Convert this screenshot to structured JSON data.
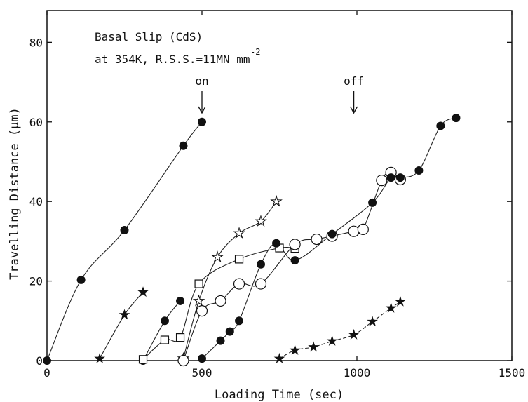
{
  "chart_data": {
    "type": "scatter",
    "title": "",
    "annotation_lines": [
      "Basal Slip (CdS)",
      "at 354K, R.S.S.=11MN mm",
      "-2"
    ],
    "markers": [
      {
        "label": "on",
        "x": 500
      },
      {
        "label": "off",
        "x": 990
      }
    ],
    "xlabel": "Loading Time (sec)",
    "ylabel": "Travelling Distance (μm)",
    "xlim": [
      0,
      1500
    ],
    "ylim": [
      0,
      88
    ],
    "x_ticks": [
      0,
      500,
      1000,
      1500
    ],
    "y_ticks": [
      0,
      20,
      40,
      60,
      80
    ],
    "x_tick_labels": [
      "0",
      "500",
      "1000",
      "1500"
    ],
    "y_tick_labels": [
      "0",
      "20",
      "40",
      "60",
      "80"
    ],
    "grid": false,
    "series": [
      {
        "marker": "filled-circle",
        "points": [
          [
            0,
            0
          ],
          [
            110,
            20.3
          ],
          [
            250,
            32.8
          ],
          [
            440,
            54
          ],
          [
            500,
            60
          ]
        ]
      },
      {
        "marker": "filled-star",
        "points": [
          [
            170,
            0.5
          ],
          [
            250,
            11.5
          ],
          [
            310,
            17.2
          ]
        ]
      },
      {
        "marker": "filled-circle",
        "points": [
          [
            310,
            0
          ],
          [
            380,
            10
          ],
          [
            430,
            15
          ]
        ]
      },
      {
        "marker": "open-star",
        "points": [
          [
            440,
            0.5
          ],
          [
            490,
            15
          ],
          [
            550,
            26
          ],
          [
            620,
            32
          ],
          [
            690,
            35
          ],
          [
            740,
            40
          ]
        ]
      },
      {
        "marker": "open-square",
        "points": [
          [
            310,
            0.3
          ],
          [
            380,
            5.2
          ],
          [
            430,
            5.8
          ],
          [
            490,
            19.3
          ],
          [
            620,
            25.5
          ],
          [
            750,
            28.3
          ],
          [
            800,
            28.2
          ]
        ]
      },
      {
        "marker": "open-circle",
        "points": [
          [
            440,
            0
          ],
          [
            500,
            12.5
          ],
          [
            560,
            15
          ],
          [
            620,
            19.3
          ],
          [
            690,
            19.3
          ],
          [
            800,
            29.2
          ],
          [
            870,
            30.5
          ],
          [
            920,
            31.3
          ],
          [
            990,
            32.5
          ],
          [
            1020,
            33
          ],
          [
            1080,
            45.3
          ],
          [
            1110,
            47.3
          ],
          [
            1140,
            45.5
          ]
        ]
      },
      {
        "marker": "filled-circle",
        "points": [
          [
            500,
            0.5
          ],
          [
            560,
            5
          ],
          [
            590,
            7.3
          ],
          [
            620,
            10
          ],
          [
            690,
            24.2
          ],
          [
            740,
            29.5
          ],
          [
            800,
            25.2
          ],
          [
            920,
            31.8
          ],
          [
            1050,
            39.7
          ],
          [
            1110,
            46
          ],
          [
            1140,
            46
          ],
          [
            1200,
            47.8
          ],
          [
            1270,
            59
          ],
          [
            1320,
            61
          ]
        ]
      },
      {
        "marker": "filled-star",
        "points": [
          [
            750,
            0.5
          ],
          [
            800,
            2.6
          ],
          [
            860,
            3.4
          ],
          [
            920,
            4.9
          ],
          [
            990,
            6.5
          ],
          [
            1050,
            9.8
          ],
          [
            1110,
            13.2
          ],
          [
            1140,
            14.8
          ]
        ]
      }
    ]
  }
}
